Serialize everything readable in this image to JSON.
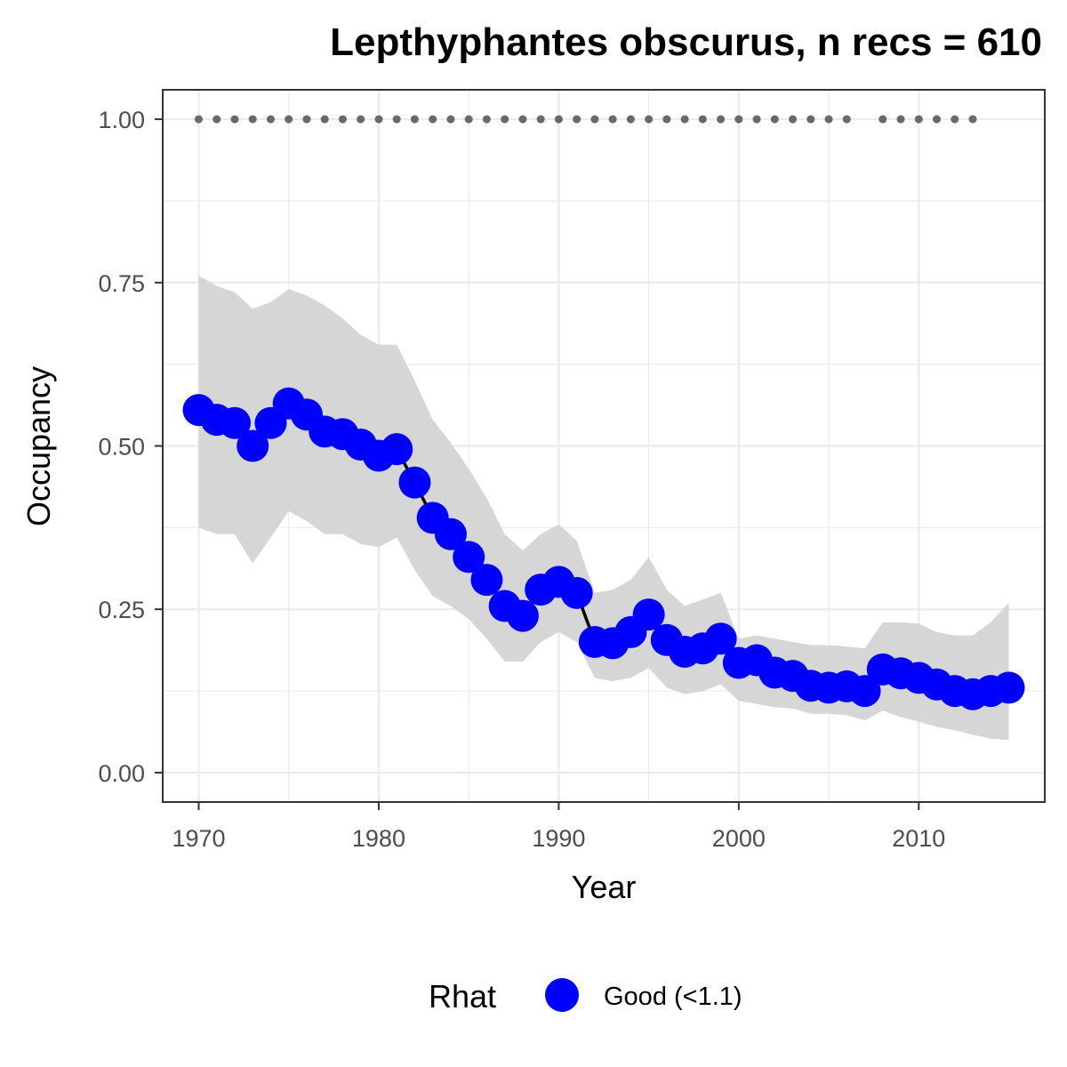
{
  "chart_data": {
    "type": "line",
    "title": "Lepthyphantes obscurus, n recs = 610",
    "xlabel": "Year",
    "ylabel": "Occupancy",
    "xlim": [
      1968,
      2017
    ],
    "ylim": [
      -0.045,
      1.045
    ],
    "x_ticks": [
      1970,
      1980,
      1990,
      2000,
      2010
    ],
    "x_tick_labels": [
      "1970",
      "1980",
      "1990",
      "2000",
      "2010"
    ],
    "y_ticks": [
      0,
      0.25,
      0.5,
      0.75,
      1.0
    ],
    "y_tick_labels": [
      "0.00",
      "0.25",
      "0.50",
      "0.75",
      "1.00"
    ],
    "grid": true,
    "legend": {
      "title": "Rhat",
      "position": "bottom",
      "entries": [
        {
          "label": "Good (<1.1)",
          "color": "#0000ff"
        }
      ]
    },
    "colors": {
      "points": "#0000ff",
      "line": "#000000",
      "ribbon": "#d3d3d3",
      "record_dots": "#696969"
    },
    "series": [
      {
        "type": "line+points",
        "x": [
          1970,
          1971,
          1972,
          1973,
          1974,
          1975,
          1976,
          1977,
          1978,
          1979,
          1980,
          1981,
          1982,
          1983,
          1984,
          1985,
          1986,
          1987,
          1988,
          1989,
          1990,
          1991,
          1992,
          1993,
          1994,
          1995,
          1996,
          1997,
          1998,
          1999,
          2000,
          2001,
          2002,
          2003,
          2004,
          2005,
          2006,
          2007,
          2008,
          2009,
          2010,
          2011,
          2012,
          2013,
          2014,
          2015
        ],
        "values": [
          0.555,
          0.54,
          0.535,
          0.5,
          0.535,
          0.565,
          0.548,
          0.522,
          0.518,
          0.502,
          0.485,
          0.495,
          0.444,
          0.39,
          0.365,
          0.33,
          0.295,
          0.255,
          0.24,
          0.28,
          0.292,
          0.275,
          0.2,
          0.198,
          0.215,
          0.242,
          0.203,
          0.185,
          0.19,
          0.205,
          0.168,
          0.172,
          0.153,
          0.148,
          0.133,
          0.13,
          0.132,
          0.125,
          0.158,
          0.152,
          0.145,
          0.135,
          0.125,
          0.12,
          0.125,
          0.13
        ]
      },
      {
        "type": "ribbon",
        "x": [
          1970,
          1971,
          1972,
          1973,
          1974,
          1975,
          1976,
          1977,
          1978,
          1979,
          1980,
          1981,
          1982,
          1983,
          1984,
          1985,
          1986,
          1987,
          1988,
          1989,
          1990,
          1991,
          1992,
          1993,
          1994,
          1995,
          1996,
          1997,
          1998,
          1999,
          2000,
          2001,
          2002,
          2003,
          2004,
          2005,
          2006,
          2007,
          2008,
          2009,
          2010,
          2011,
          2012,
          2013,
          2014,
          2015
        ],
        "upper": [
          0.76,
          0.745,
          0.735,
          0.71,
          0.72,
          0.74,
          0.73,
          0.715,
          0.695,
          0.67,
          0.655,
          0.655,
          0.6,
          0.54,
          0.505,
          0.465,
          0.42,
          0.365,
          0.34,
          0.365,
          0.38,
          0.355,
          0.275,
          0.28,
          0.295,
          0.33,
          0.28,
          0.255,
          0.265,
          0.275,
          0.205,
          0.21,
          0.205,
          0.2,
          0.195,
          0.195,
          0.193,
          0.19,
          0.23,
          0.23,
          0.228,
          0.215,
          0.21,
          0.21,
          0.23,
          0.26
        ],
        "lower": [
          0.375,
          0.365,
          0.365,
          0.32,
          0.36,
          0.4,
          0.385,
          0.365,
          0.365,
          0.35,
          0.345,
          0.36,
          0.31,
          0.27,
          0.255,
          0.235,
          0.205,
          0.17,
          0.17,
          0.2,
          0.215,
          0.2,
          0.145,
          0.14,
          0.145,
          0.16,
          0.13,
          0.12,
          0.125,
          0.135,
          0.11,
          0.105,
          0.1,
          0.098,
          0.09,
          0.09,
          0.088,
          0.08,
          0.095,
          0.085,
          0.078,
          0.07,
          0.065,
          0.058,
          0.052,
          0.05
        ]
      },
      {
        "type": "record-years",
        "y": 1.0,
        "x": [
          1970,
          1971,
          1972,
          1973,
          1974,
          1975,
          1976,
          1977,
          1978,
          1979,
          1980,
          1981,
          1982,
          1983,
          1984,
          1985,
          1986,
          1987,
          1988,
          1989,
          1990,
          1991,
          1992,
          1993,
          1994,
          1995,
          1996,
          1997,
          1998,
          1999,
          2000,
          2001,
          2002,
          2003,
          2004,
          2005,
          2006,
          2008,
          2009,
          2010,
          2011,
          2012,
          2013
        ]
      }
    ]
  }
}
